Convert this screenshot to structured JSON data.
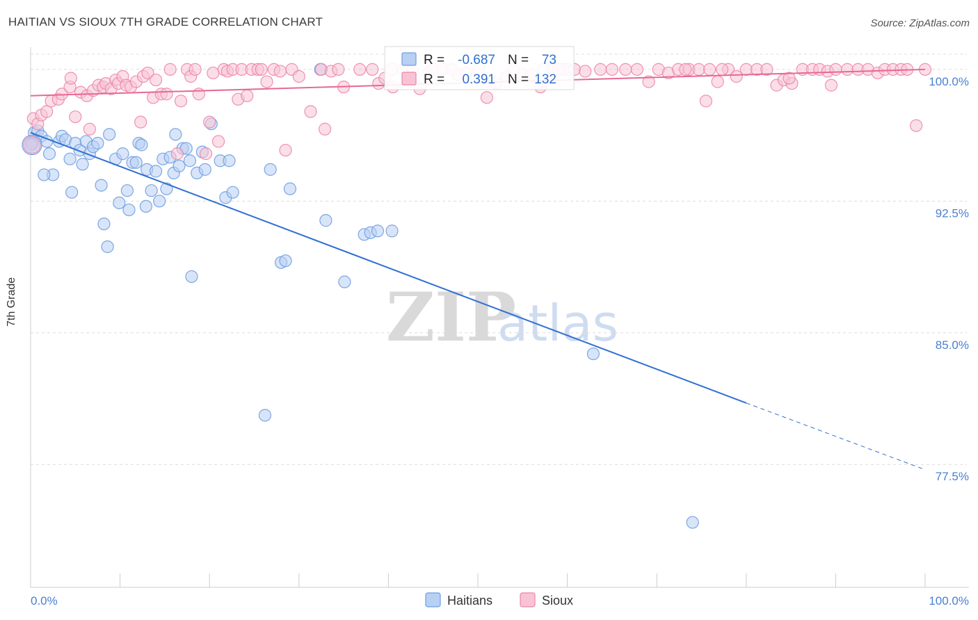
{
  "chart_data": {
    "type": "scatter",
    "title": "HAITIAN VS SIOUX 7TH GRADE CORRELATION CHART",
    "source": "Source: ZipAtlas.com",
    "xlabel": "",
    "ylabel": "7th Grade",
    "xlim": [
      0,
      100
    ],
    "ylim": [
      70.5,
      101.5
    ],
    "x_tick_labels": [
      "0.0%",
      "100.0%"
    ],
    "y_ticks": [
      {
        "value": 100.0,
        "label": "100.0%"
      },
      {
        "value": 92.5,
        "label": "92.5%"
      },
      {
        "value": 85.0,
        "label": "85.0%"
      },
      {
        "value": 77.5,
        "label": "77.5%"
      }
    ],
    "watermark": "ZIPatlas",
    "legend": {
      "r_label": "R =",
      "n_label": "N =",
      "rows": [
        {
          "series": "Haitians",
          "r": "-0.687",
          "n": "73"
        },
        {
          "series": "Sioux",
          "r": "0.391",
          "n": "132"
        }
      ]
    },
    "series": [
      {
        "name": "Haitians",
        "color": "#6f9de0",
        "fill": "#b8d0f4",
        "trend": {
          "x0": 0,
          "y0": 96.4,
          "x1": 80,
          "y1": 81.0,
          "dash_to_x": 100,
          "dash_to_y": 77.2
        },
        "points": [
          [
            0.2,
            95.8
          ],
          [
            0.4,
            96.4
          ],
          [
            0.8,
            96.5
          ],
          [
            1.2,
            96.2
          ],
          [
            1.8,
            95.9
          ],
          [
            2.1,
            95.2
          ],
          [
            2.5,
            94.0
          ],
          [
            1.5,
            94.0
          ],
          [
            3.2,
            95.9
          ],
          [
            3.5,
            96.2
          ],
          [
            3.9,
            96.0
          ],
          [
            4.4,
            94.9
          ],
          [
            4.6,
            93.0
          ],
          [
            5.0,
            95.8
          ],
          [
            5.5,
            95.4
          ],
          [
            5.8,
            94.6
          ],
          [
            6.2,
            95.9
          ],
          [
            6.6,
            95.2
          ],
          [
            7.0,
            95.6
          ],
          [
            7.5,
            95.8
          ],
          [
            7.9,
            93.4
          ],
          [
            8.2,
            91.2
          ],
          [
            8.6,
            89.9
          ],
          [
            8.8,
            96.3
          ],
          [
            9.5,
            94.9
          ],
          [
            9.9,
            92.4
          ],
          [
            10.3,
            95.2
          ],
          [
            10.8,
            93.1
          ],
          [
            11.0,
            92.0
          ],
          [
            11.4,
            94.7
          ],
          [
            11.8,
            94.7
          ],
          [
            12.1,
            95.8
          ],
          [
            12.4,
            95.7
          ],
          [
            12.9,
            92.2
          ],
          [
            13.0,
            94.3
          ],
          [
            13.5,
            93.1
          ],
          [
            14.0,
            94.2
          ],
          [
            14.4,
            92.5
          ],
          [
            14.8,
            94.9
          ],
          [
            15.2,
            93.2
          ],
          [
            15.6,
            95.0
          ],
          [
            16.0,
            94.1
          ],
          [
            16.2,
            96.3
          ],
          [
            16.6,
            94.5
          ],
          [
            17.0,
            95.5
          ],
          [
            17.4,
            95.5
          ],
          [
            17.8,
            94.8
          ],
          [
            18.0,
            88.2
          ],
          [
            18.6,
            94.1
          ],
          [
            19.2,
            95.3
          ],
          [
            19.5,
            94.3
          ],
          [
            20.2,
            96.9
          ],
          [
            21.2,
            94.8
          ],
          [
            21.8,
            92.7
          ],
          [
            22.2,
            94.8
          ],
          [
            22.6,
            93.0
          ],
          [
            26.2,
            80.3
          ],
          [
            26.8,
            94.3
          ],
          [
            28.0,
            89.0
          ],
          [
            28.5,
            89.1
          ],
          [
            29.0,
            93.2
          ],
          [
            32.4,
            100.0
          ],
          [
            33.0,
            91.4
          ],
          [
            35.1,
            87.9
          ],
          [
            37.3,
            90.6
          ],
          [
            38.0,
            90.7
          ],
          [
            38.8,
            90.8
          ],
          [
            40.4,
            90.8
          ],
          [
            57.3,
            100.0
          ],
          [
            60.0,
            100.0
          ],
          [
            62.9,
            83.8
          ],
          [
            74.0,
            74.2
          ],
          [
            0.1,
            95.7
          ]
        ]
      },
      {
        "name": "Sioux",
        "color": "#ec86a8",
        "fill": "#f8c4d5",
        "trend": {
          "x0": 0,
          "y0": 98.5,
          "x1": 100,
          "y1": 100.0
        },
        "points": [
          [
            0.3,
            97.2
          ],
          [
            0.8,
            96.9
          ],
          [
            1.2,
            97.4
          ],
          [
            1.8,
            97.6
          ],
          [
            2.3,
            98.2
          ],
          [
            3.1,
            98.3
          ],
          [
            3.5,
            98.6
          ],
          [
            4.4,
            99.0
          ],
          [
            4.5,
            99.5
          ],
          [
            5.0,
            97.3
          ],
          [
            5.6,
            98.7
          ],
          [
            6.3,
            98.5
          ],
          [
            6.6,
            96.6
          ],
          [
            7.0,
            98.8
          ],
          [
            7.6,
            99.1
          ],
          [
            8.1,
            99.0
          ],
          [
            8.4,
            99.2
          ],
          [
            9.0,
            98.9
          ],
          [
            9.5,
            99.4
          ],
          [
            9.8,
            99.2
          ],
          [
            10.3,
            99.6
          ],
          [
            10.7,
            99.1
          ],
          [
            11.2,
            99.0
          ],
          [
            11.8,
            99.3
          ],
          [
            12.3,
            97.0
          ],
          [
            12.6,
            99.6
          ],
          [
            13.1,
            99.8
          ],
          [
            13.7,
            98.4
          ],
          [
            14.0,
            99.4
          ],
          [
            14.6,
            98.6
          ],
          [
            15.2,
            98.6
          ],
          [
            15.6,
            100.0
          ],
          [
            16.4,
            95.2
          ],
          [
            16.8,
            98.2
          ],
          [
            17.5,
            100.0
          ],
          [
            17.9,
            99.6
          ],
          [
            18.4,
            100.0
          ],
          [
            18.8,
            98.6
          ],
          [
            19.6,
            95.2
          ],
          [
            20.0,
            97.0
          ],
          [
            20.4,
            99.8
          ],
          [
            21.0,
            95.9
          ],
          [
            21.6,
            100.0
          ],
          [
            22.0,
            99.9
          ],
          [
            22.6,
            100.0
          ],
          [
            23.2,
            98.3
          ],
          [
            23.6,
            100.0
          ],
          [
            24.2,
            98.5
          ],
          [
            24.7,
            100.0
          ],
          [
            25.4,
            100.0
          ],
          [
            25.8,
            100.0
          ],
          [
            26.4,
            99.3
          ],
          [
            27.2,
            100.0
          ],
          [
            27.9,
            99.9
          ],
          [
            28.5,
            95.4
          ],
          [
            29.2,
            100.0
          ],
          [
            30.0,
            99.6
          ],
          [
            31.3,
            97.6
          ],
          [
            32.5,
            100.0
          ],
          [
            32.9,
            96.6
          ],
          [
            33.6,
            99.9
          ],
          [
            34.4,
            100.0
          ],
          [
            35.0,
            99.0
          ],
          [
            36.8,
            100.0
          ],
          [
            38.2,
            100.0
          ],
          [
            38.9,
            99.2
          ],
          [
            39.6,
            99.5
          ],
          [
            40.4,
            100.0
          ],
          [
            41.6,
            100.0
          ],
          [
            42.7,
            100.0
          ],
          [
            43.5,
            98.9
          ],
          [
            44.5,
            99.8
          ],
          [
            45.0,
            100.0
          ],
          [
            46.1,
            100.0
          ],
          [
            47.1,
            100.0
          ],
          [
            47.8,
            99.7
          ],
          [
            48.7,
            99.8
          ],
          [
            50.1,
            100.0
          ],
          [
            51.0,
            98.4
          ],
          [
            52.0,
            99.2
          ],
          [
            53.2,
            99.6
          ],
          [
            54.0,
            100.0
          ],
          [
            55.1,
            99.7
          ],
          [
            56.0,
            99.7
          ],
          [
            57.0,
            99.0
          ],
          [
            58.5,
            100.0
          ],
          [
            59.5,
            100.0
          ],
          [
            60.8,
            100.0
          ],
          [
            62.0,
            99.9
          ],
          [
            63.7,
            100.0
          ],
          [
            65.0,
            100.0
          ],
          [
            66.5,
            100.0
          ],
          [
            67.8,
            100.0
          ],
          [
            69.1,
            99.3
          ],
          [
            70.2,
            100.0
          ],
          [
            71.3,
            99.8
          ],
          [
            72.4,
            100.0
          ],
          [
            73.6,
            100.0
          ],
          [
            74.7,
            100.0
          ],
          [
            75.9,
            100.0
          ],
          [
            76.8,
            99.3
          ],
          [
            78.0,
            100.0
          ],
          [
            78.9,
            99.6
          ],
          [
            80.0,
            100.0
          ],
          [
            81.2,
            100.0
          ],
          [
            82.3,
            100.0
          ],
          [
            83.4,
            99.1
          ],
          [
            84.2,
            99.4
          ],
          [
            85.1,
            99.2
          ],
          [
            86.3,
            100.0
          ],
          [
            87.4,
            100.0
          ],
          [
            88.2,
            100.0
          ],
          [
            89.1,
            99.9
          ],
          [
            90.0,
            100.0
          ],
          [
            91.3,
            100.0
          ],
          [
            92.5,
            100.0
          ],
          [
            93.6,
            100.0
          ],
          [
            94.7,
            99.8
          ],
          [
            95.5,
            100.0
          ],
          [
            96.4,
            100.0
          ],
          [
            97.3,
            100.0
          ],
          [
            98.0,
            100.0
          ],
          [
            99.0,
            96.8
          ],
          [
            100.0,
            100.0
          ],
          [
            89.5,
            99.1
          ],
          [
            84.8,
            99.5
          ],
          [
            75.5,
            98.2
          ],
          [
            77.3,
            100.0
          ],
          [
            73.2,
            100.0
          ],
          [
            59.0,
            100.0
          ],
          [
            40.5,
            99.0
          ],
          [
            42.4,
            99.3
          ]
        ]
      }
    ]
  }
}
